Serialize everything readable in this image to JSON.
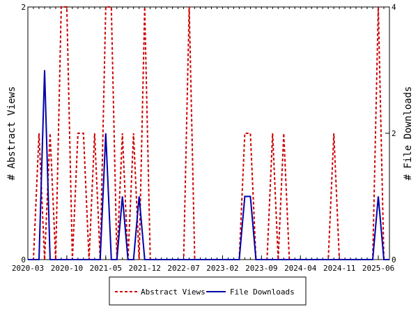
{
  "chart_data": {
    "type": "line",
    "ylabel_left": "# Abstract Views",
    "ylabel_right": "# File Downloads",
    "ylim_left": [
      0,
      2
    ],
    "ylim_right": [
      0,
      4
    ],
    "yticks_left": [
      "0",
      "2"
    ],
    "yticks_right": [
      "0",
      "2",
      "4"
    ],
    "x_range": [
      "2020-03",
      "2025-08"
    ],
    "xtick_labels": [
      "2020-03",
      "2020-10",
      "2021-05",
      "2021-12",
      "2022-07",
      "2023-02",
      "2023-09",
      "2024-04",
      "2024-11",
      "2025-06"
    ],
    "grid": false,
    "legend_position": "bottom",
    "series": [
      {
        "name": "Abstract Views",
        "axis": "left",
        "color": "#cc0000",
        "style": "dashed",
        "x": [
          "2020-03",
          "2020-04",
          "2020-05",
          "2020-06",
          "2020-07",
          "2020-08",
          "2020-09",
          "2020-10",
          "2020-11",
          "2020-12",
          "2021-01",
          "2021-02",
          "2021-03",
          "2021-04",
          "2021-05",
          "2021-06",
          "2021-07",
          "2021-08",
          "2021-09",
          "2021-10",
          "2021-11",
          "2021-12",
          "2022-01",
          "2022-02",
          "2022-03",
          "2022-04",
          "2022-05",
          "2022-06",
          "2022-07",
          "2022-08",
          "2022-09",
          "2022-10",
          "2022-11",
          "2022-12",
          "2023-01",
          "2023-02",
          "2023-03",
          "2023-04",
          "2023-05",
          "2023-06",
          "2023-07",
          "2023-08",
          "2023-09",
          "2023-10",
          "2023-11",
          "2023-12",
          "2024-01",
          "2024-02",
          "2024-03",
          "2024-04",
          "2024-05",
          "2024-06",
          "2024-07",
          "2024-08",
          "2024-09",
          "2024-10",
          "2024-11",
          "2024-12",
          "2025-01",
          "2025-02",
          "2025-03",
          "2025-04",
          "2025-05",
          "2025-06",
          "2025-07",
          "2025-08"
        ],
        "values": [
          0,
          0,
          1,
          0,
          1,
          0,
          2,
          2,
          0,
          1,
          1,
          0,
          1,
          0,
          2,
          2,
          0,
          1,
          0,
          1,
          0,
          2,
          0,
          0,
          0,
          0,
          0,
          0,
          0,
          2,
          0,
          0,
          0,
          0,
          0,
          0,
          0,
          0,
          0,
          1,
          1,
          0,
          0,
          0,
          1,
          0,
          1,
          0,
          0,
          0,
          0,
          0,
          0,
          0,
          0,
          1,
          0,
          0,
          0,
          0,
          0,
          0,
          0,
          2,
          0,
          0
        ]
      },
      {
        "name": "File Downloads",
        "axis": "right",
        "color": "#0000aa",
        "style": "solid",
        "x": [
          "2020-03",
          "2020-04",
          "2020-05",
          "2020-06",
          "2020-07",
          "2020-08",
          "2020-09",
          "2020-10",
          "2020-11",
          "2020-12",
          "2021-01",
          "2021-02",
          "2021-03",
          "2021-04",
          "2021-05",
          "2021-06",
          "2021-07",
          "2021-08",
          "2021-09",
          "2021-10",
          "2021-11",
          "2021-12",
          "2022-01",
          "2022-02",
          "2022-03",
          "2022-04",
          "2022-05",
          "2022-06",
          "2022-07",
          "2022-08",
          "2022-09",
          "2022-10",
          "2022-11",
          "2022-12",
          "2023-01",
          "2023-02",
          "2023-03",
          "2023-04",
          "2023-05",
          "2023-06",
          "2023-07",
          "2023-08",
          "2023-09",
          "2023-10",
          "2023-11",
          "2023-12",
          "2024-01",
          "2024-02",
          "2024-03",
          "2024-04",
          "2024-05",
          "2024-06",
          "2024-07",
          "2024-08",
          "2024-09",
          "2024-10",
          "2024-11",
          "2024-12",
          "2025-01",
          "2025-02",
          "2025-03",
          "2025-04",
          "2025-05",
          "2025-06",
          "2025-07",
          "2025-08"
        ],
        "values": [
          0,
          0,
          0,
          3,
          0,
          0,
          0,
          0,
          0,
          0,
          0,
          0,
          0,
          0,
          2,
          0,
          0,
          1,
          0,
          0,
          1,
          0,
          0,
          0,
          0,
          0,
          0,
          0,
          0,
          0,
          0,
          0,
          0,
          0,
          0,
          0,
          0,
          0,
          0,
          1,
          1,
          0,
          0,
          0,
          0,
          0,
          0,
          0,
          0,
          0,
          0,
          0,
          0,
          0,
          0,
          0,
          0,
          0,
          0,
          0,
          0,
          0,
          0,
          1,
          0,
          0
        ]
      }
    ]
  }
}
